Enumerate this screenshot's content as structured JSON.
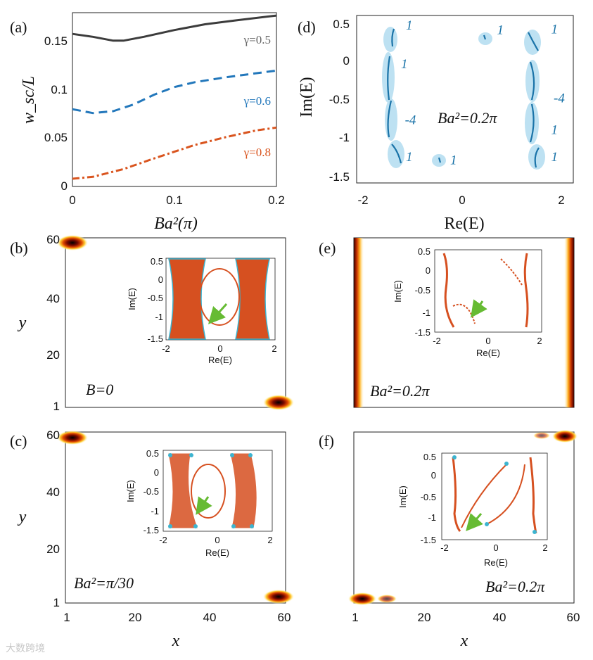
{
  "figure": {
    "watermark": "大数跨境"
  },
  "chart_data": [
    {
      "id": "a",
      "panel_label": "(a)",
      "type": "line",
      "xlabel": "Ba²(π)",
      "ylabel": "w_sc/L",
      "xlim": [
        0,
        0.2
      ],
      "ylim": [
        0,
        0.18
      ],
      "xticks": [
        "0",
        "0.1",
        "0.2"
      ],
      "yticks": [
        "0",
        "0.05",
        "0.1",
        "0.15"
      ],
      "series": [
        {
          "name": "γ=0.5",
          "color": "#3c3c3c",
          "style": "solid",
          "x": [
            0,
            0.02,
            0.04,
            0.05,
            0.07,
            0.1,
            0.13,
            0.16,
            0.2
          ],
          "values": [
            0.158,
            0.155,
            0.151,
            0.151,
            0.155,
            0.162,
            0.168,
            0.172,
            0.177
          ]
        },
        {
          "name": "γ=0.6",
          "color": "#2277bb",
          "style": "dashed",
          "x": [
            0,
            0.02,
            0.04,
            0.06,
            0.08,
            0.1,
            0.12,
            0.15,
            0.2
          ],
          "values": [
            0.08,
            0.076,
            0.078,
            0.085,
            0.095,
            0.103,
            0.108,
            0.113,
            0.12
          ]
        },
        {
          "name": "γ=0.8",
          "color": "#d9541e",
          "style": "dashdot",
          "x": [
            0,
            0.02,
            0.05,
            0.08,
            0.1,
            0.12,
            0.15,
            0.18,
            0.2
          ],
          "values": [
            0.008,
            0.01,
            0.018,
            0.029,
            0.036,
            0.043,
            0.051,
            0.058,
            0.061
          ]
        }
      ]
    },
    {
      "id": "d",
      "panel_label": "(d)",
      "type": "scatter",
      "xlabel": "Re(E)",
      "ylabel": "Im(E)",
      "xlim": [
        -2.2,
        2.2
      ],
      "ylim": [
        -1.58,
        0.58
      ],
      "xticks": [
        "-2",
        "0",
        "2"
      ],
      "yticks": [
        "0.5",
        "0",
        "-0.5",
        "-1",
        "-1.5"
      ],
      "annotation": "Ba²=0.2π",
      "winding_labels": [
        {
          "text": "1",
          "re": -1.2,
          "im": 0.4
        },
        {
          "text": "1",
          "re": 0.65,
          "im": 0.34
        },
        {
          "text": "1",
          "re": 1.75,
          "im": 0.35
        },
        {
          "text": "1",
          "re": -1.3,
          "im": -0.1
        },
        {
          "text": "-4",
          "re": -1.22,
          "im": -0.82
        },
        {
          "text": "-4",
          "re": 1.8,
          "im": -0.54
        },
        {
          "text": "1",
          "re": 1.75,
          "im": -0.95
        },
        {
          "text": "1",
          "re": -1.2,
          "im": -1.3
        },
        {
          "text": "1",
          "re": -0.3,
          "im": -1.34
        },
        {
          "text": "1",
          "re": 1.75,
          "im": -1.3
        }
      ]
    },
    {
      "id": "b",
      "panel_label": "(b)",
      "type": "heatmap",
      "xlim": [
        1,
        60
      ],
      "ylim": [
        1,
        60
      ],
      "ylabel": "y",
      "yticks": [
        "60",
        "40",
        "20",
        "1"
      ],
      "annotation": "B=0",
      "inset": {
        "type": "scatter",
        "xlabel": "Re(E)",
        "ylabel": "Im(E)",
        "xticks": [
          "-2",
          "0",
          "2"
        ],
        "yticks": [
          "0.5",
          "0",
          "-0.5",
          "-1",
          "-1.5"
        ]
      }
    },
    {
      "id": "e",
      "panel_label": "(e)",
      "type": "heatmap",
      "xlim": [
        1,
        60
      ],
      "ylim": [
        1,
        60
      ],
      "annotation": "Ba²=0.2π",
      "inset": {
        "type": "scatter",
        "xlabel": "Re(E)",
        "ylabel": "Im(E)",
        "xticks": [
          "-2",
          "0",
          "2"
        ],
        "yticks": [
          "0.5",
          "0",
          "-0.5",
          "-1",
          "-1.5"
        ]
      }
    },
    {
      "id": "c",
      "panel_label": "(c)",
      "type": "heatmap",
      "xlim": [
        1,
        60
      ],
      "ylim": [
        1,
        60
      ],
      "ylabel": "y",
      "xlabel": "x",
      "xticks": [
        "1",
        "20",
        "40",
        "60"
      ],
      "yticks": [
        "60",
        "40",
        "20",
        "1"
      ],
      "annotation": "Ba²=π/30",
      "inset": {
        "type": "scatter",
        "xlabel": "Re(E)",
        "ylabel": "Im(E)",
        "xticks": [
          "-2",
          "0",
          "2"
        ],
        "yticks": [
          "0.5",
          "0",
          "-0.5",
          "-1",
          "-1.5"
        ]
      }
    },
    {
      "id": "f",
      "panel_label": "(f)",
      "type": "heatmap",
      "xlim": [
        1,
        60
      ],
      "ylim": [
        1,
        60
      ],
      "xlabel": "x",
      "xticks": [
        "1",
        "20",
        "40",
        "60"
      ],
      "annotation": "Ba²=0.2π",
      "inset": {
        "type": "scatter",
        "xlabel": "Re(E)",
        "ylabel": "Im(E)",
        "xticks": [
          "-2",
          "0",
          "2"
        ],
        "yticks": [
          "0.5",
          "0",
          "-0.5",
          "-1",
          "-1.5"
        ]
      }
    }
  ]
}
